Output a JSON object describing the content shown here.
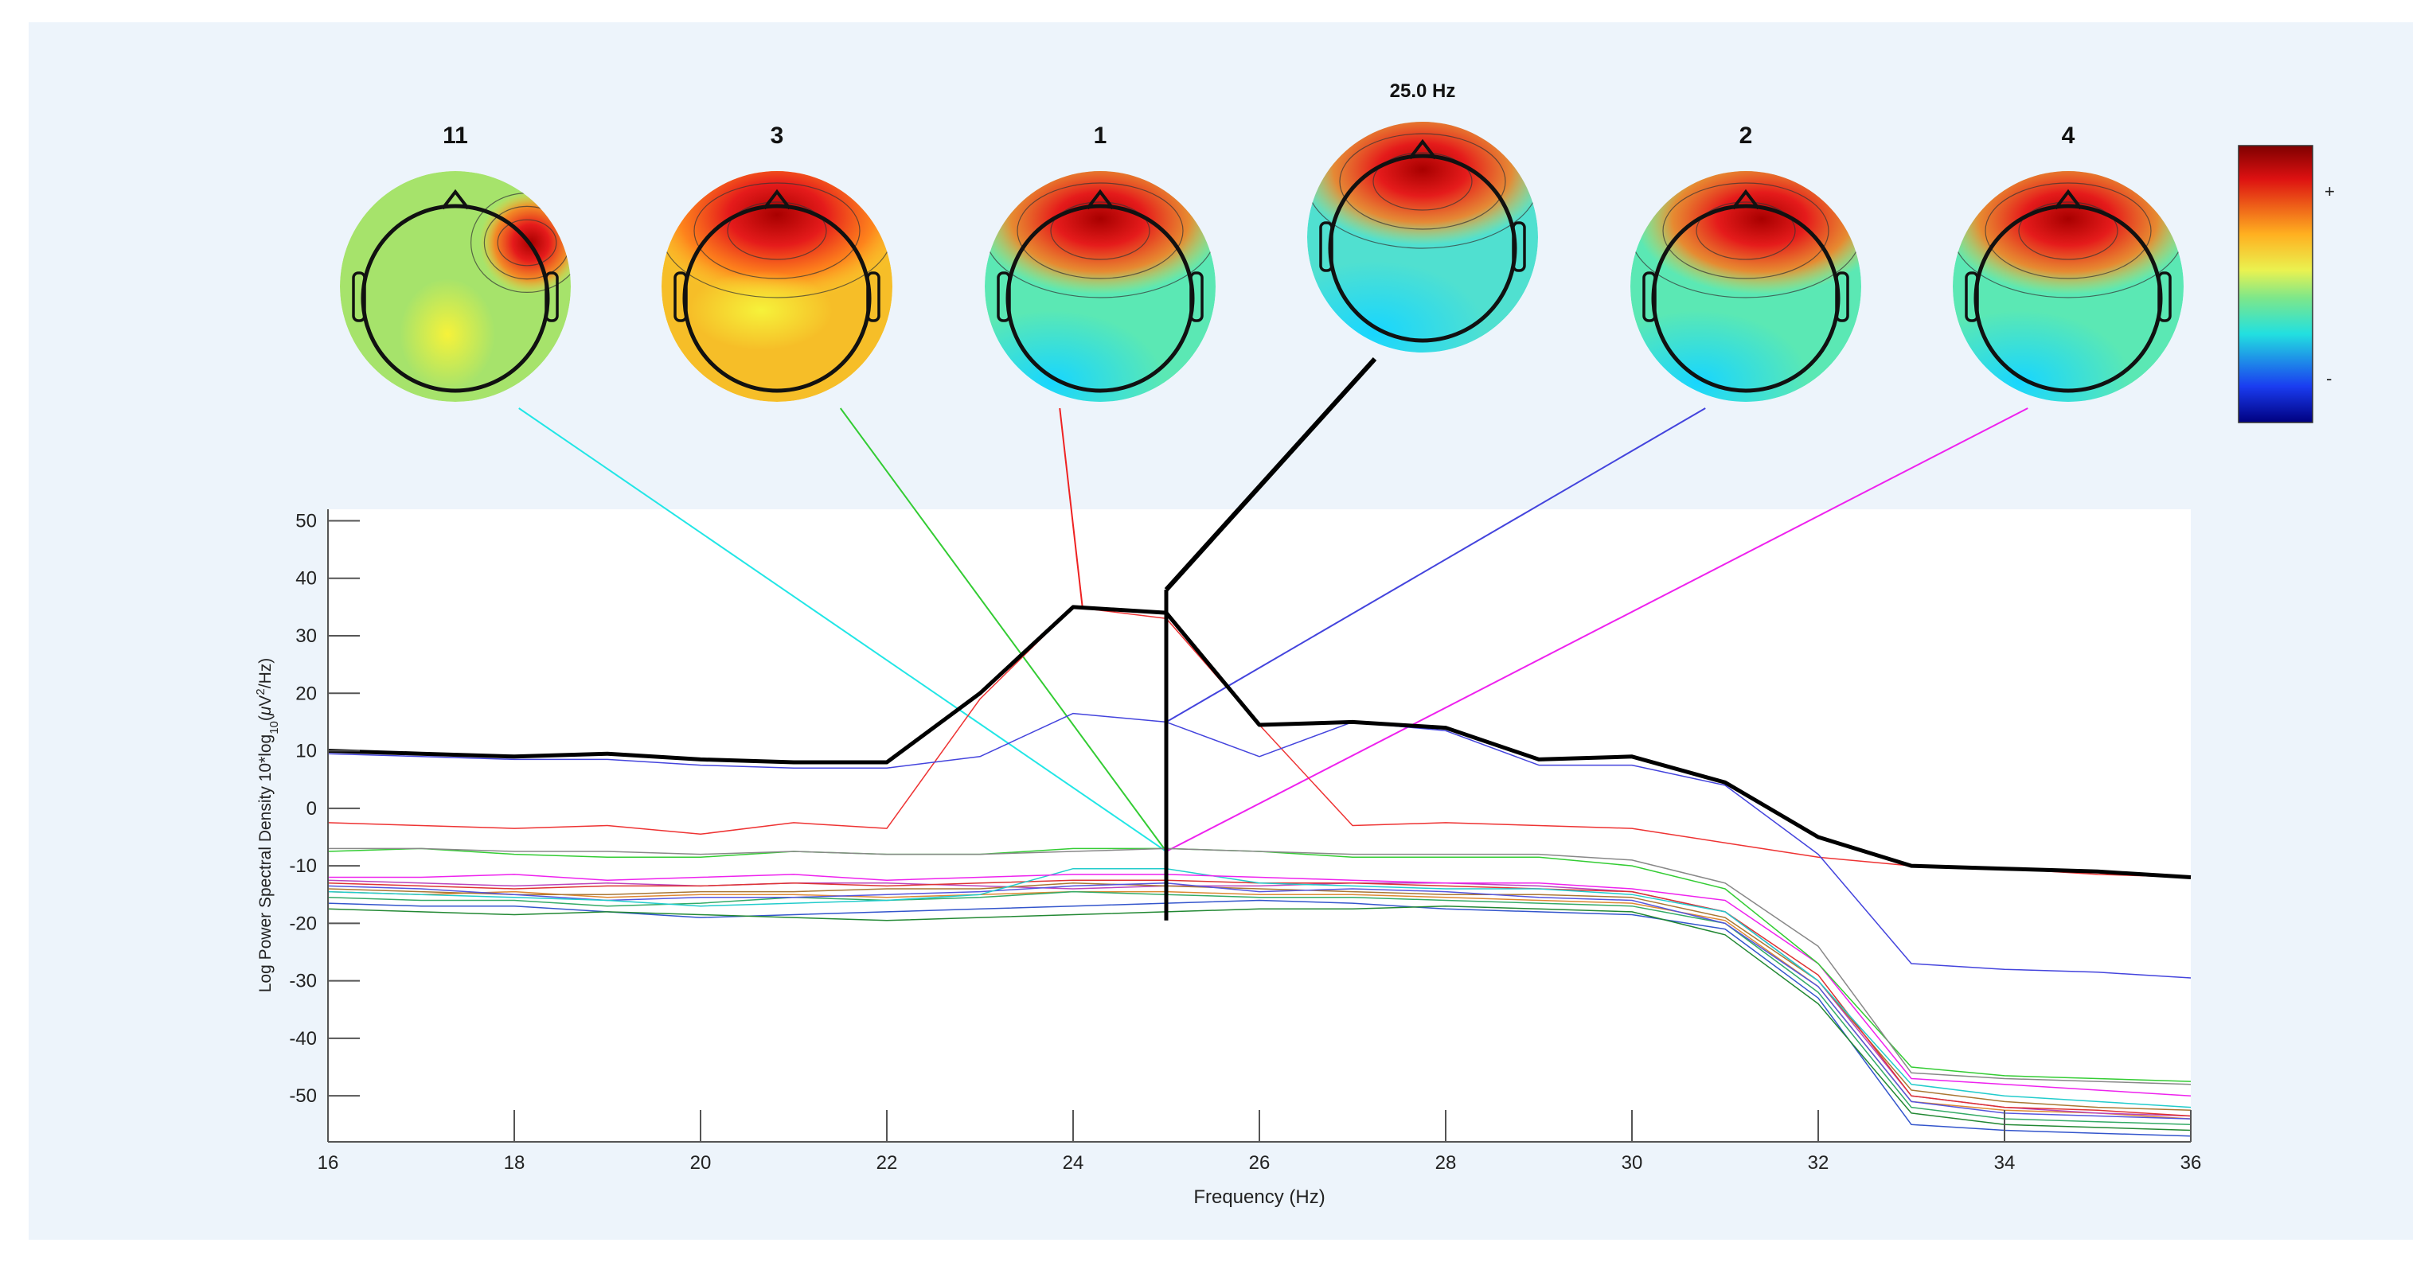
{
  "figure": {
    "background": "#edf4fb",
    "plot_background": "#ffffff",
    "frequency_label": "25.0 Hz",
    "colorbar": {
      "max_label": "+",
      "min_label": "-"
    }
  },
  "topomaps": [
    {
      "label": "11",
      "kind": "focal-right",
      "bg": "#a6e36b",
      "line": "#22e6e6"
    },
    {
      "label": "3",
      "kind": "broad",
      "bg": "#f6be28",
      "line": "#33cc33"
    },
    {
      "label": "1",
      "kind": "frontal",
      "bg": "#5be8b4",
      "line": "#ee2222"
    },
    {
      "label": "25.0 Hz",
      "kind": "frontal",
      "bg": "#50e0d0",
      "line": "#000000"
    },
    {
      "label": "2",
      "kind": "frontal",
      "bg": "#5be8b4",
      "line": "#4444dd"
    },
    {
      "label": "4",
      "kind": "frontal",
      "bg": "#5be8b4",
      "line": "#ee22ee"
    }
  ],
  "chart_data": {
    "type": "line",
    "xlabel": "Frequency (Hz)",
    "ylabel": "Log Power Spectral Density 10*log10(μV²/Hz)",
    "ylabel_parts": {
      "pre": "Log Power Spectral Density 10*log",
      "sub": "10",
      "mid": "(",
      "mu": "μ",
      "v": "V",
      "sup": "2",
      "post": "/Hz)"
    },
    "xlim": [
      16,
      36
    ],
    "ylim": [
      -58,
      52
    ],
    "xticks": [
      16,
      18,
      20,
      22,
      24,
      26,
      28,
      30,
      32,
      34,
      36
    ],
    "yticks": [
      50,
      40,
      30,
      20,
      10,
      0,
      -10,
      -20,
      -30,
      -40,
      -50
    ],
    "marker_frequency": 25,
    "x": [
      16,
      17,
      18,
      19,
      20,
      21,
      22,
      23,
      24,
      25,
      26,
      27,
      28,
      29,
      30,
      31,
      32,
      33,
      34,
      35,
      36
    ],
    "series": [
      {
        "color": "#000000",
        "width": 5,
        "values": [
          10,
          9.5,
          9,
          9.5,
          8.5,
          8,
          8,
          20,
          35,
          34,
          14.5,
          15,
          14,
          8.5,
          9,
          4.5,
          -5,
          -10,
          -10.5,
          -11,
          -12
        ]
      },
      {
        "color": "#cc2222",
        "width": 2.5,
        "values": [
          10,
          9.5,
          9,
          9.5,
          8.5,
          8,
          8,
          20,
          35,
          34,
          14.5,
          15,
          14,
          8.5,
          9,
          4.5,
          -5,
          -10,
          -10.5,
          -11,
          -12
        ]
      },
      {
        "color": "#4444dd",
        "width": 1.5,
        "values": [
          9.5,
          9,
          8.5,
          8.5,
          7.5,
          7,
          7,
          9,
          16.5,
          15,
          9,
          15,
          13.5,
          7.5,
          7.5,
          4,
          -8,
          -27,
          -28,
          -28.5,
          -29.5
        ]
      },
      {
        "color": "#ee3333",
        "width": 1.5,
        "values": [
          -2.5,
          -3,
          -3.5,
          -3,
          -4.5,
          -2.5,
          -3.5,
          19,
          35,
          33,
          14.5,
          -3,
          -2.5,
          -3,
          -3.5,
          -6,
          -8.5,
          -10,
          -10.5,
          -11.5,
          -12
        ]
      },
      {
        "color": "#888888",
        "width": 1.5,
        "values": [
          -7,
          -7,
          -7.5,
          -7.5,
          -8,
          -7.5,
          -8,
          -8,
          -7.5,
          -7,
          -7.5,
          -8,
          -8,
          -8,
          -9,
          -13,
          -24,
          -46,
          -47,
          -47.5,
          -48
        ]
      },
      {
        "color": "#33cc33",
        "width": 1.5,
        "values": [
          -7.5,
          -7,
          -8,
          -8.5,
          -8.5,
          -7.5,
          -8,
          -8,
          -7,
          -7,
          -7.5,
          -8.5,
          -8.5,
          -8.5,
          -10,
          -14,
          -27,
          -45,
          -46.5,
          -47,
          -47.5
        ]
      },
      {
        "color": "#ee22ee",
        "width": 1.5,
        "values": [
          -12,
          -12,
          -11.5,
          -12.5,
          -12,
          -11.5,
          -12.5,
          -12,
          -11.5,
          -11.5,
          -12,
          -12.5,
          -13,
          -13,
          -14,
          -16,
          -27,
          -47,
          -48,
          -49,
          -50
        ]
      },
      {
        "color": "#22cccc",
        "width": 1.5,
        "values": [
          -14.5,
          -15,
          -15.5,
          -16,
          -17,
          -16.5,
          -16,
          -15,
          -10.5,
          -10.5,
          -13,
          -13.5,
          -14,
          -14,
          -15,
          -18,
          -30,
          -48,
          -50,
          -51,
          -52
        ]
      },
      {
        "color": "#dd3333",
        "width": 1.5,
        "values": [
          -13,
          -13.5,
          -14,
          -13.5,
          -13.5,
          -13,
          -13.5,
          -13,
          -12.5,
          -12.5,
          -13,
          -13,
          -13.5,
          -14,
          -14.5,
          -18,
          -29,
          -50,
          -52,
          -52.5,
          -53.5
        ]
      },
      {
        "color": "#5555dd",
        "width": 1.5,
        "values": [
          -13.5,
          -14,
          -15,
          -16,
          -15.5,
          -15.5,
          -15,
          -14.5,
          -13.5,
          -13,
          -14.5,
          -14,
          -14.5,
          -15.5,
          -16,
          -20,
          -31,
          -51,
          -53,
          -53.5,
          -54
        ]
      },
      {
        "color": "#aa7733",
        "width": 1.5,
        "values": [
          -14,
          -14.5,
          -15,
          -15,
          -14.5,
          -14.5,
          -14,
          -14,
          -13,
          -13.5,
          -14,
          -14.5,
          -15,
          -15,
          -15.5,
          -19,
          -30,
          -49,
          -51,
          -52,
          -52.5
        ]
      },
      {
        "color": "#228833",
        "width": 1.5,
        "values": [
          -17.5,
          -18,
          -18.5,
          -18,
          -18.5,
          -19,
          -19.5,
          -19,
          -18.5,
          -18,
          -17.5,
          -17.5,
          -17,
          -17.5,
          -18,
          -22,
          -34,
          -53,
          -55,
          -55.5,
          -56
        ]
      },
      {
        "color": "#3355cc",
        "width": 1.5,
        "values": [
          -16.5,
          -17,
          -17,
          -18,
          -19,
          -18.5,
          -18,
          -17.5,
          -17,
          -16.5,
          -16,
          -16.5,
          -17.5,
          -18,
          -18.5,
          -21,
          -33,
          -55,
          -56,
          -56.5,
          -57
        ]
      },
      {
        "color": "#33aa66",
        "width": 1.5,
        "values": [
          -15.5,
          -16,
          -16,
          -17,
          -16.5,
          -15.5,
          -16,
          -15.5,
          -14.5,
          -15,
          -15.5,
          -15.5,
          -16,
          -16.5,
          -17,
          -20,
          -32,
          -52,
          -54,
          -54.5,
          -55
        ]
      },
      {
        "color": "#bb44bb",
        "width": 1.5,
        "values": [
          -12.5,
          -13,
          -13.5,
          -13,
          -13.5,
          -13,
          -13,
          -13.5,
          -14,
          -13.5,
          -13.5,
          -13,
          -13,
          -13.5,
          -14.5,
          -18,
          -30,
          -50,
          -52,
          -53,
          -53.5
        ]
      },
      {
        "color": "#dd8833",
        "width": 1.5,
        "values": [
          -14.5,
          -15,
          -14.5,
          -15.5,
          -15,
          -15,
          -15.5,
          -15,
          -14.5,
          -14.5,
          -15,
          -15,
          -15.5,
          -16,
          -16.5,
          -19.5,
          -31,
          -51,
          -52.5,
          -53,
          -54
        ]
      }
    ]
  }
}
